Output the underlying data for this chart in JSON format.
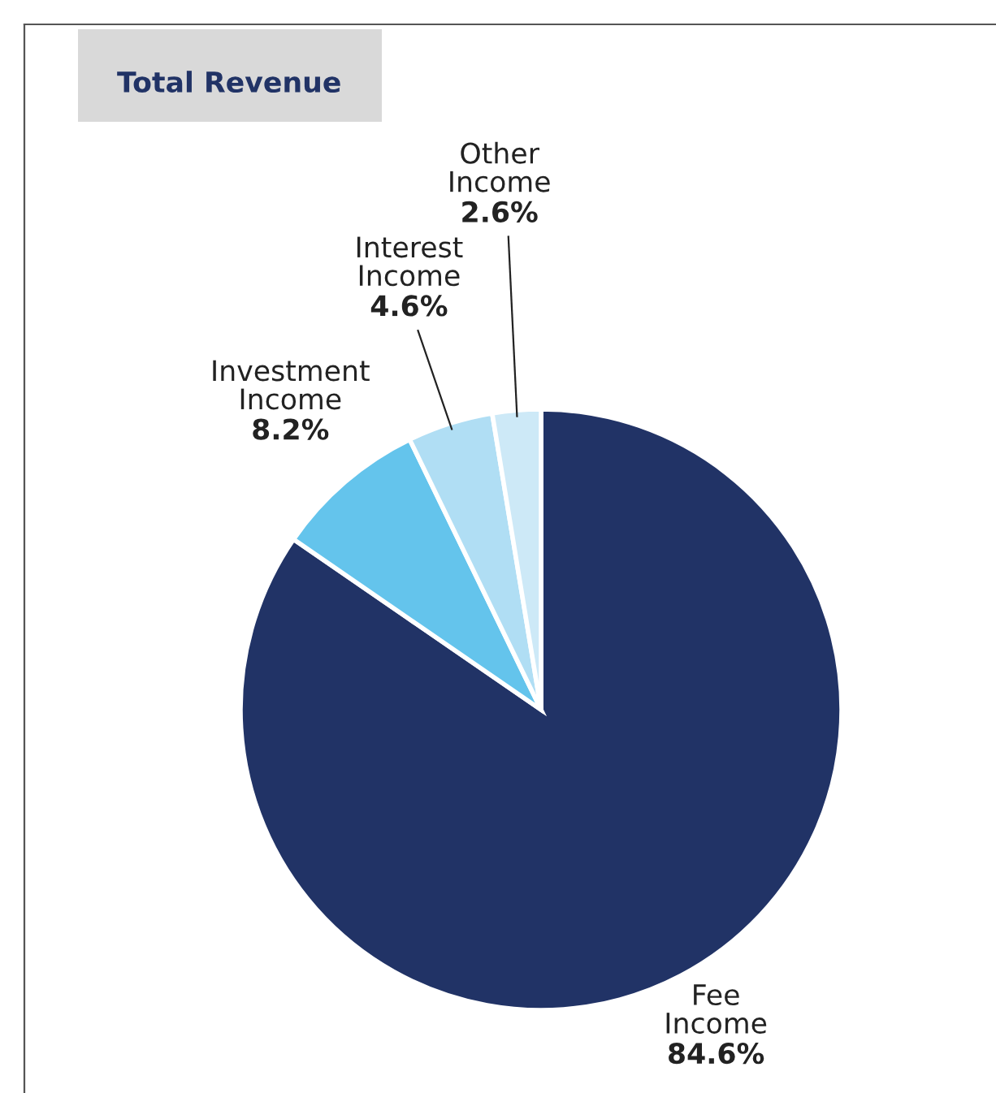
{
  "chart_data": {
    "type": "pie",
    "title": "Total Revenue",
    "categories": [
      "Fee\nIncome",
      "Investment\nIncome",
      "Interest\nIncome",
      "Other\nIncome"
    ],
    "values": [
      84.6,
      8.2,
      4.6,
      2.6
    ],
    "value_labels": [
      "84.6%",
      "8.2%",
      "4.6%",
      "2.6%"
    ],
    "colors": [
      "#213366",
      "#64c4ec",
      "#b0def4",
      "#cde9f7"
    ],
    "legend": false
  }
}
